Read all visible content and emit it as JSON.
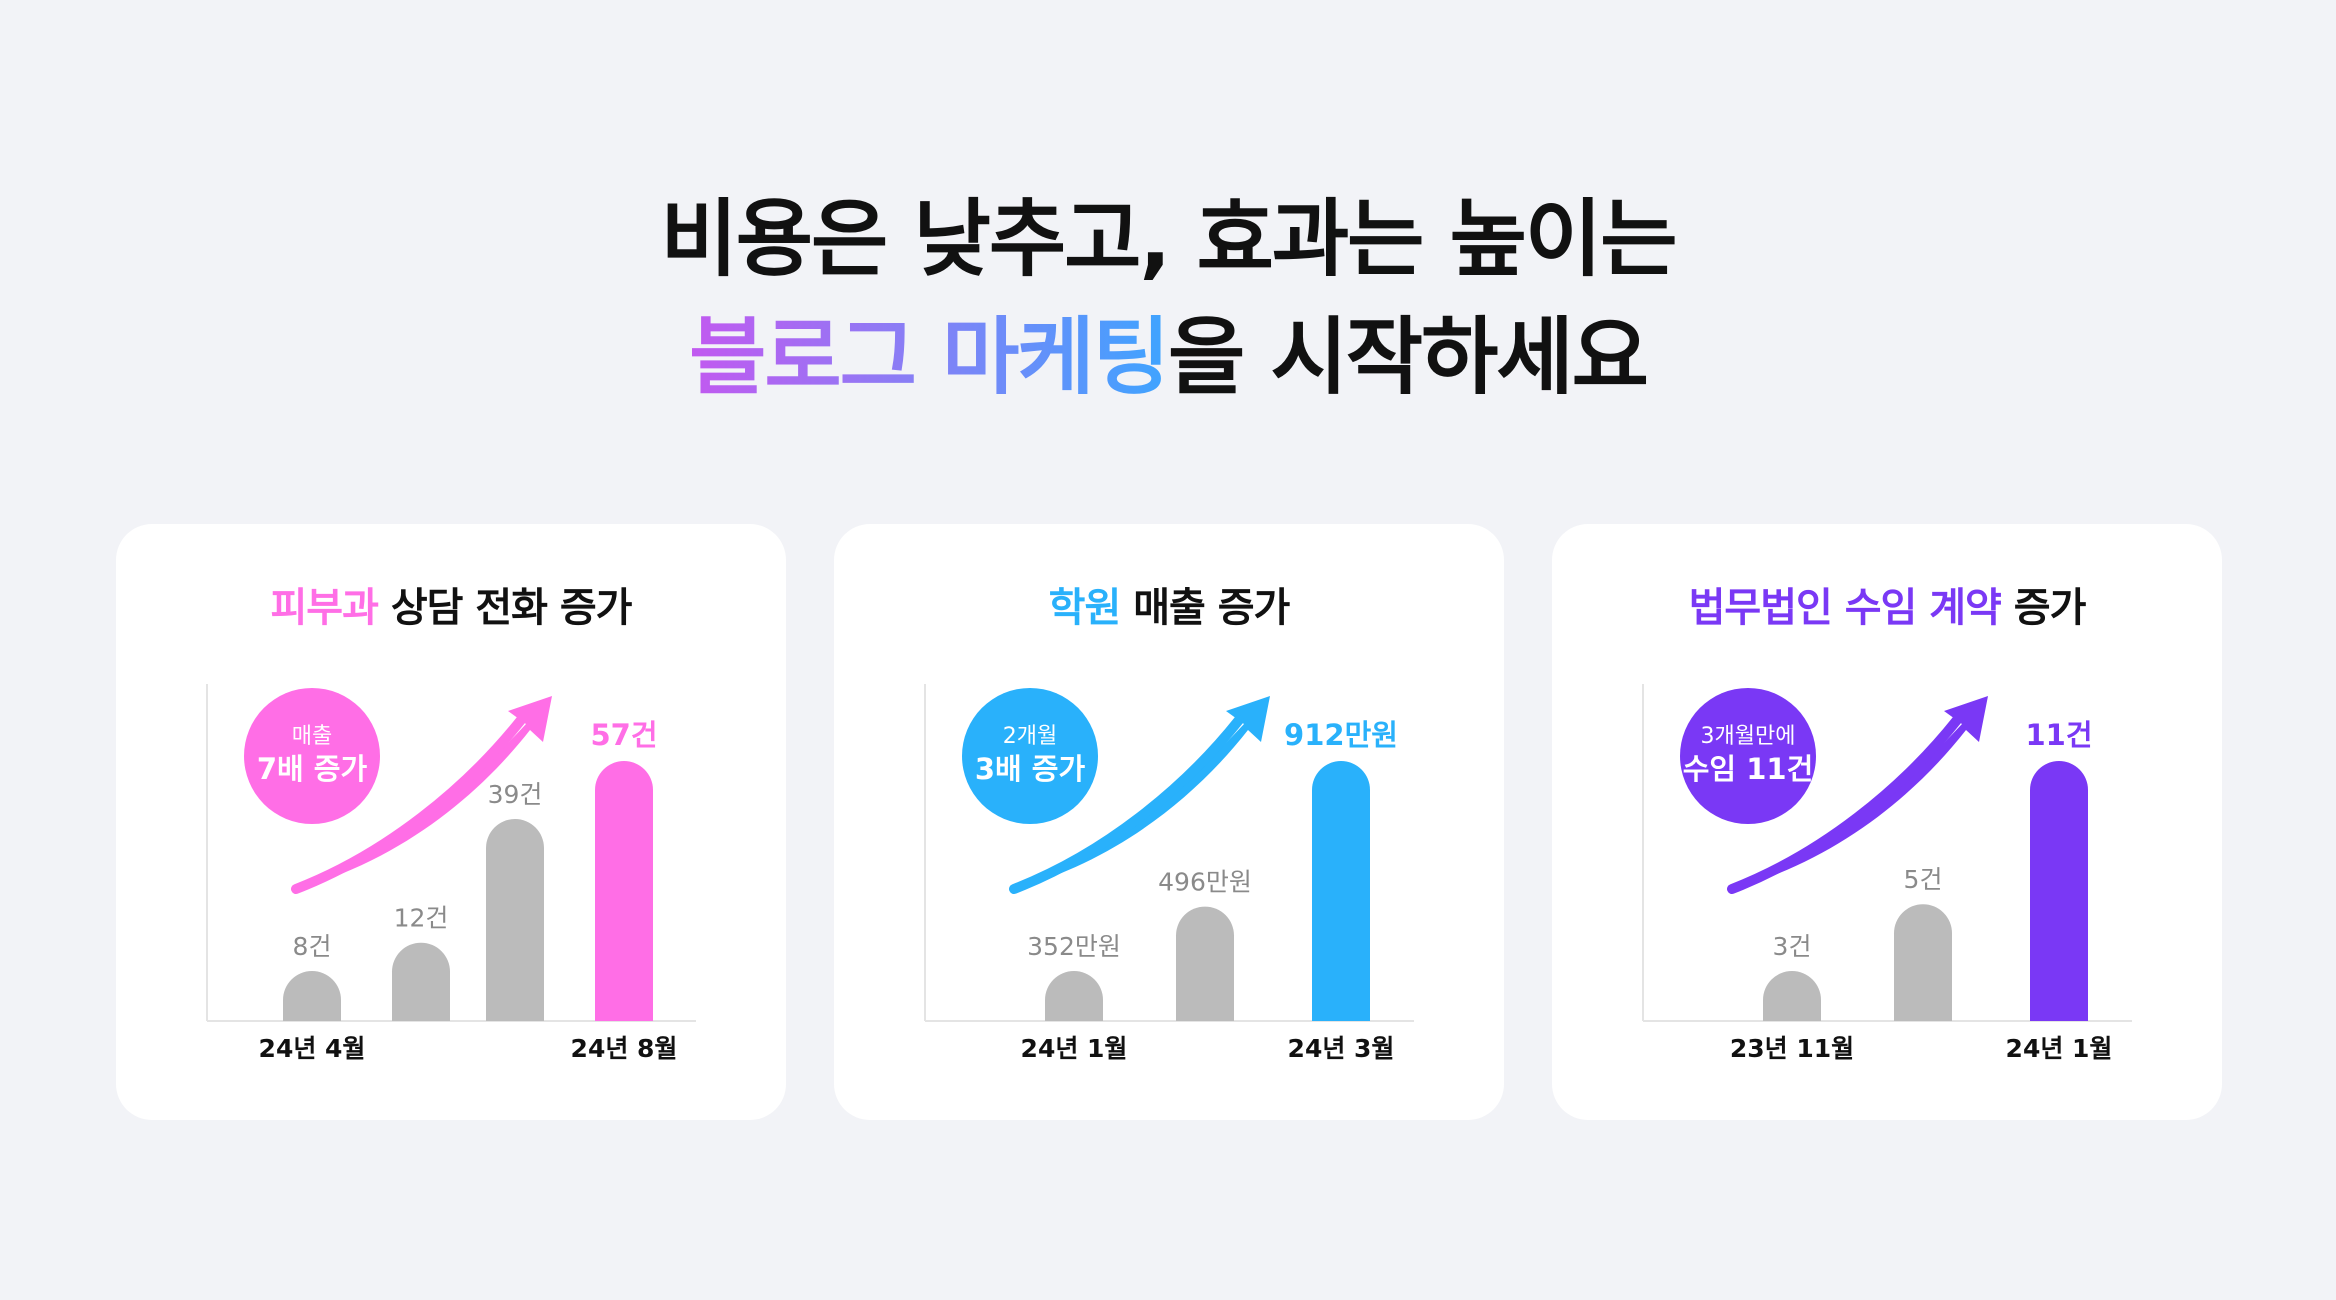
{
  "headline": {
    "line1": "비용은 낮추고, 효과는 높이는",
    "line2_highlight": "블로그 마케팅",
    "line2_rest": "을 시작하세요"
  },
  "cards": [
    {
      "title_highlight": "피부과",
      "title_rest": " 상담 전화 증가",
      "accent": "#ff6ee6",
      "badge_line1": "매출",
      "badge_line2": "7배 증가"
    },
    {
      "title_highlight": "학원",
      "title_rest": " 매출 증가",
      "accent": "#29b1fb",
      "badge_line1": "2개월",
      "badge_line2": "3배 증가"
    },
    {
      "title_highlight": "법무법인 수임 계약",
      "title_rest": " 증가",
      "accent": "#7a38f5",
      "badge_line1": "3개월만에",
      "badge_line2": "수임 11건"
    }
  ],
  "chart_data": [
    {
      "type": "bar",
      "categories": [
        "24년 4월",
        "",
        "",
        "24년 8월"
      ],
      "values": [
        8,
        12,
        39,
        57
      ],
      "value_labels": [
        "8건",
        "12건",
        "39건",
        "57건"
      ],
      "highlight_index": 3,
      "bar_color": "#bbbbbb",
      "highlight_color": "#ff6ee6"
    },
    {
      "type": "bar",
      "categories": [
        "24년 1월",
        "",
        "24년 3월"
      ],
      "values": [
        352,
        496,
        912
      ],
      "value_labels": [
        "352만원",
        "496만원",
        "912만원"
      ],
      "highlight_index": 2,
      "bar_color": "#bbbbbb",
      "highlight_color": "#29b1fb"
    },
    {
      "type": "bar",
      "categories": [
        "23년 11월",
        "",
        "24년 1월"
      ],
      "values": [
        3,
        5,
        11
      ],
      "value_labels": [
        "3건",
        "5건",
        "11건"
      ],
      "highlight_index": 2,
      "bar_color": "#bbbbbb",
      "highlight_color": "#7a38f5"
    }
  ]
}
